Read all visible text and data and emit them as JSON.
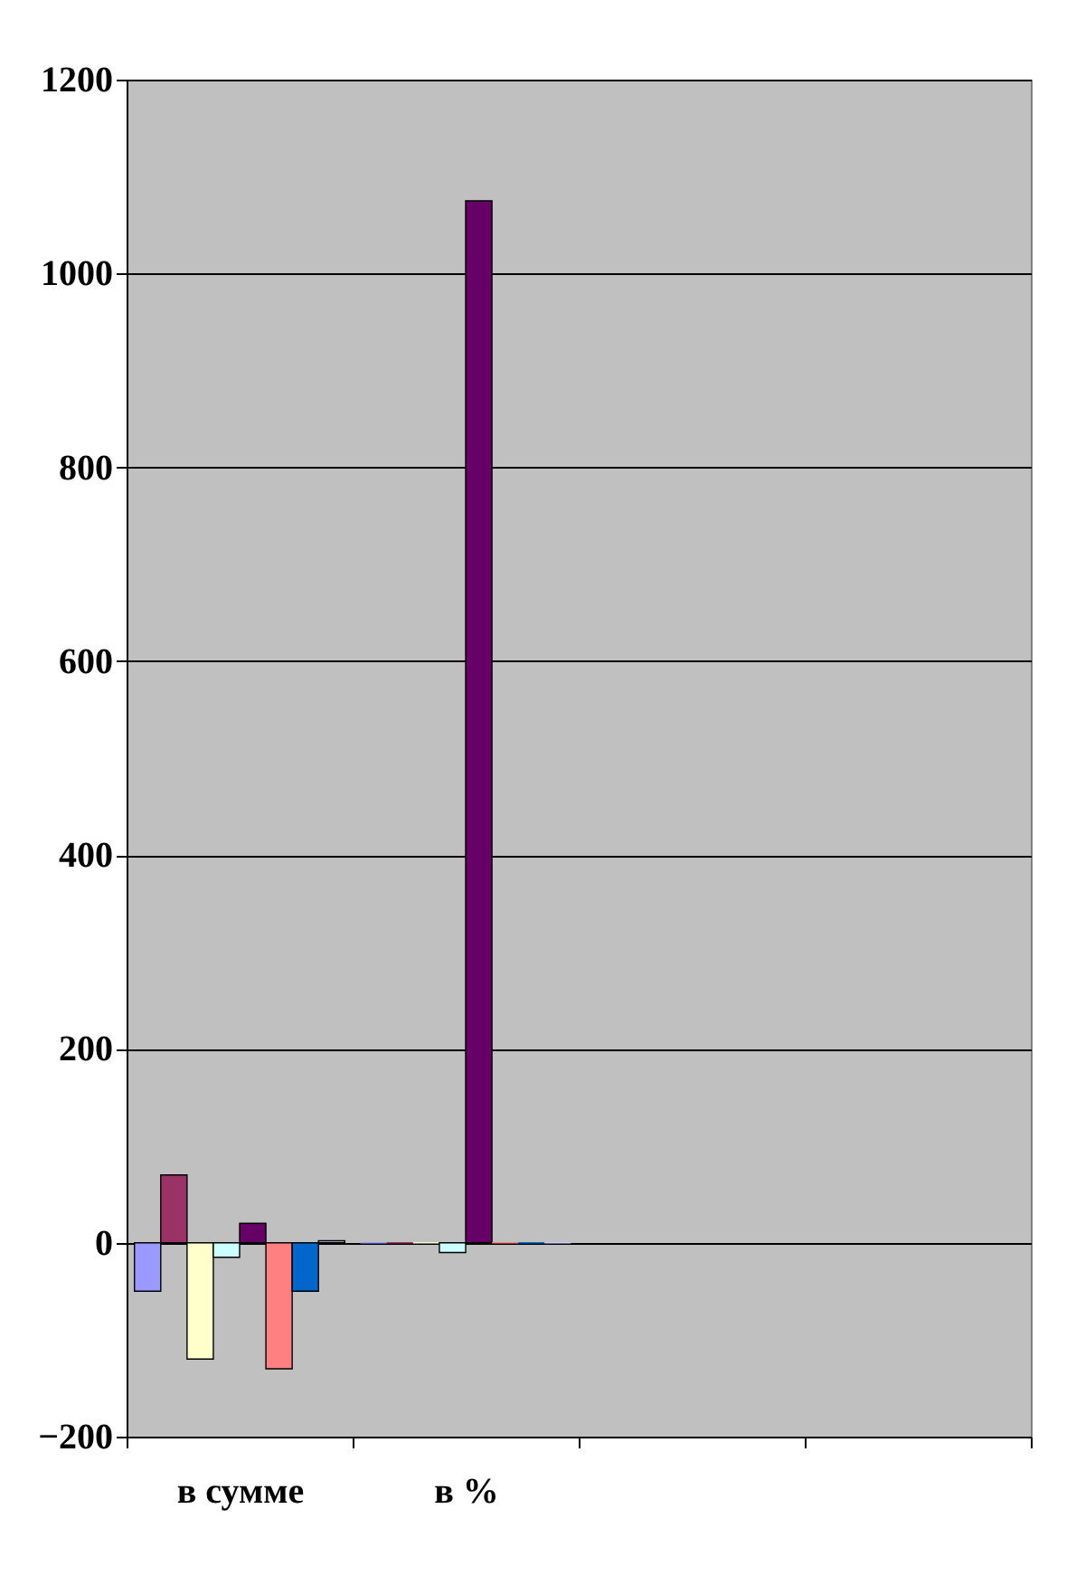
{
  "chart_data": {
    "type": "bar",
    "categories": [
      "в сумме",
      "в %",
      null,
      null
    ],
    "series": [
      {
        "color": "#9999ff",
        "values": [
          -50,
          0,
          null,
          null
        ]
      },
      {
        "color": "#993366",
        "values": [
          70,
          0,
          null,
          null
        ]
      },
      {
        "color": "#ffffcc",
        "values": [
          -120,
          0,
          null,
          null
        ]
      },
      {
        "color": "#ccffff",
        "values": [
          -15,
          -10,
          null,
          null
        ]
      },
      {
        "color": "#660066",
        "values": [
          20,
          1075,
          null,
          null
        ]
      },
      {
        "color": "#ff8080",
        "values": [
          -130,
          0,
          null,
          null
        ]
      },
      {
        "color": "#0066cc",
        "values": [
          -50,
          0,
          null,
          null
        ]
      },
      {
        "color": "#ccccff",
        "values": [
          2,
          0,
          null,
          null
        ]
      }
    ],
    "ylim": [
      -200,
      1200
    ],
    "yticks": [
      -200,
      0,
      200,
      400,
      600,
      800,
      1000,
      1200
    ],
    "grid": "y"
  }
}
